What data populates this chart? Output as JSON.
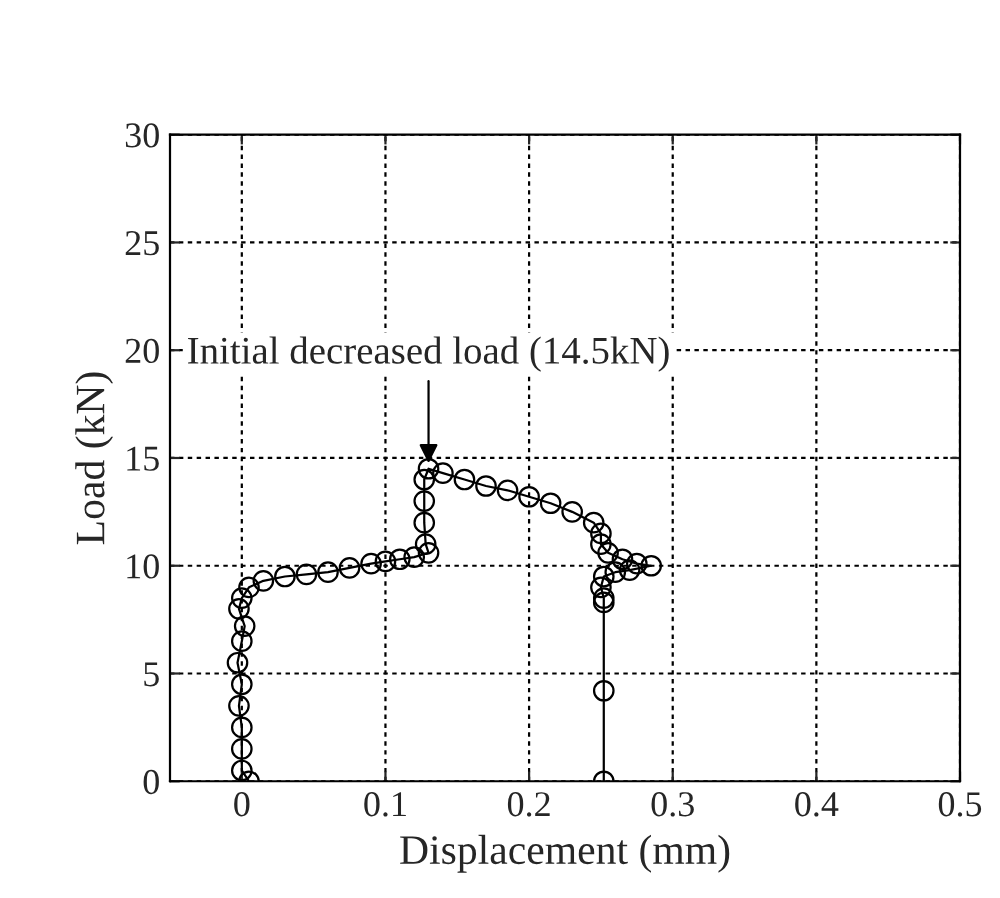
{
  "chart_data": {
    "type": "line",
    "xlabel": "Displacement (mm)",
    "ylabel": "Load (kN)",
    "xlim": [
      -0.05,
      0.5
    ],
    "ylim": [
      0,
      30
    ],
    "xticks": [
      0,
      0.1,
      0.2,
      0.3,
      0.4,
      0.5
    ],
    "yticks": [
      0,
      5,
      10,
      15,
      20,
      25,
      30
    ],
    "grid": true,
    "marker": "circle",
    "line_style": "solid",
    "series": [
      {
        "color": "#000000",
        "x": [
          0.005,
          0,
          0,
          0,
          -0.002,
          0,
          -0.003,
          0,
          0.002,
          -0.002,
          0,
          0.005,
          0.015,
          0.03,
          0.045,
          0.06,
          0.075,
          0.09,
          0.1,
          0.11,
          0.12,
          0.13,
          0.128,
          0.127,
          0.127,
          0.127,
          0.13,
          0.14,
          0.155,
          0.17,
          0.185,
          0.2,
          0.215,
          0.23,
          0.245,
          0.25,
          0.25,
          0.255,
          0.265,
          0.275,
          0.285,
          0.27,
          0.26,
          0.252,
          0.25,
          0.252,
          0.252,
          0.252,
          0.252
        ],
        "values": [
          0,
          0.5,
          1.5,
          2.5,
          3.5,
          4.5,
          5.5,
          6.5,
          7.2,
          8,
          8.5,
          9,
          9.3,
          9.5,
          9.6,
          9.7,
          9.9,
          10.1,
          10.2,
          10.3,
          10.4,
          10.6,
          11,
          12,
          13,
          14,
          14.5,
          14.3,
          14,
          13.7,
          13.5,
          13.2,
          12.9,
          12.5,
          12,
          11.5,
          11,
          10.6,
          10.3,
          10.1,
          10,
          9.8,
          9.7,
          9.5,
          9,
          8.5,
          8.3,
          4.2,
          0
        ]
      }
    ],
    "annotations": [
      {
        "text": "Initial decreased load (14.5kN)",
        "x": 0.13,
        "y": 14.5
      }
    ]
  }
}
